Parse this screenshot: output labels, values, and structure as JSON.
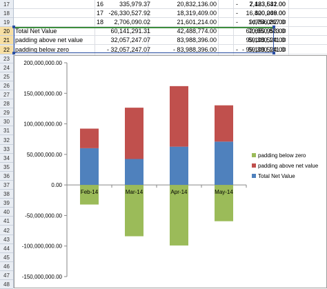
{
  "row_numbers": [
    "17",
    "18",
    "19",
    "20",
    "21",
    "22",
    "23",
    "24",
    "25",
    "26",
    "27",
    "28",
    "29",
    "30",
    "31",
    "32",
    "33",
    "34",
    "35",
    "36",
    "37",
    "38",
    "39",
    "40",
    "41",
    "42",
    "43",
    "44",
    "45",
    "46",
    "47",
    "48"
  ],
  "selected_rows": [
    "20",
    "21",
    "22"
  ],
  "sheet_rows": [
    {
      "label": "",
      "b": "16",
      "c": "335,979.37",
      "d": "20,832,136.00",
      "e": "7,423,532.00",
      "f_sign": "-",
      "f": "2,183,641.00"
    },
    {
      "label": "",
      "b": "17",
      "c": "-26,330,527.92",
      "d": "18,319,409.00",
      "e": "16,400,208.00",
      "f_sign": "-",
      "f": "820,049.00"
    },
    {
      "label": "",
      "b": "18",
      "c": "2,706,090.02",
      "d": "21,601,214.00",
      "e": "9,984,082.00",
      "f_sign": "-",
      "f": "14,756,267.00"
    },
    {
      "label": "Total Net Value",
      "b": "",
      "c": "60,141,291.31",
      "d": "42,488,774.00",
      "e": "62,659,953.00",
      "f_sign": "",
      "f": "70,950,873.00"
    },
    {
      "label": "padding above net value",
      "b": "",
      "c": "32,057,247.07",
      "d": "83,988,396.00",
      "e": "99,103,524.00",
      "f_sign": "",
      "f": "59,380,141.00"
    },
    {
      "label": "padding below zero",
      "b": "",
      "c": "- 32,057,247.07",
      "d": "- 83,988,396.00",
      "e": "- 99,103,524.00",
      "f_sign": "-",
      "f": "59,380,141.00"
    }
  ],
  "chart_data": {
    "type": "bar",
    "stacked": true,
    "categories": [
      "Feb-14",
      "Mar-14",
      "Apr-14",
      "May-14"
    ],
    "series": [
      {
        "name": "Total Net Value",
        "color": "#4f81bd",
        "values": [
          60141291.31,
          42488774,
          62659953,
          70950873
        ]
      },
      {
        "name": "padding above net value",
        "color": "#c0504d",
        "values": [
          32057247.07,
          83988396,
          99103524,
          59380141
        ]
      },
      {
        "name": "padding below zero",
        "color": "#9bbb59",
        "values": [
          -32057247.07,
          -83988396,
          -99103524,
          -59380141
        ]
      }
    ],
    "ylim": [
      -150000000,
      200000000
    ],
    "yticks": [
      200000000,
      150000000,
      100000000,
      50000000,
      0,
      -50000000,
      -100000000,
      -150000000
    ],
    "ytick_labels": [
      "200,000,000.00",
      "150,000,000.00",
      "100,000,000.00",
      "50,000,000.00",
      "0.00",
      "-50,000,000.00",
      "-100,000,000.00",
      "-150,000,000.00"
    ],
    "legend_order": [
      "padding below zero",
      "padding above net value",
      "Total Net Value"
    ],
    "legend_position": "right",
    "grid": false
  }
}
